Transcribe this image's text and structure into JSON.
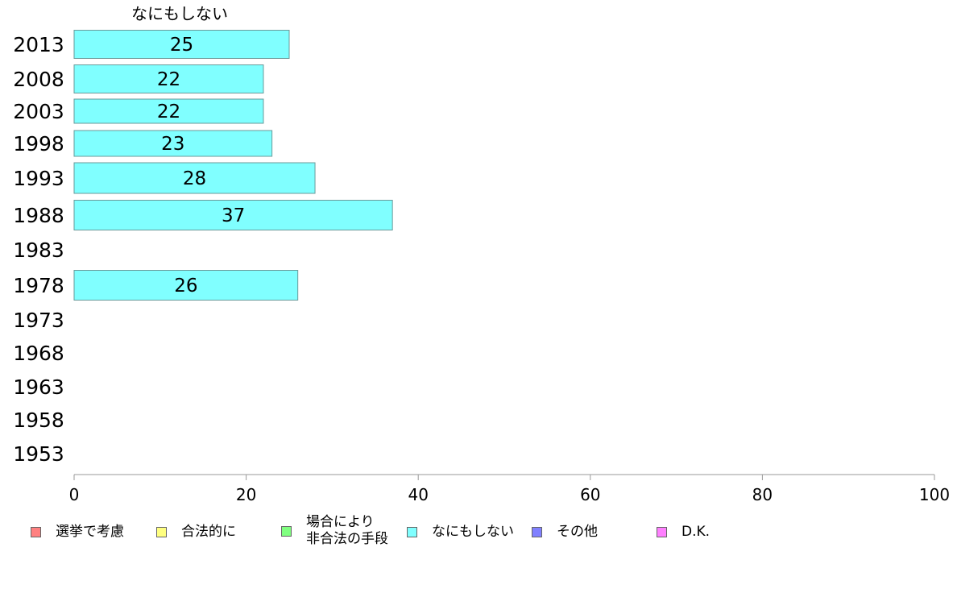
{
  "chart_data": {
    "type": "bar",
    "orientation": "horizontal",
    "series": [
      {
        "name": "なにもしない",
        "color": "#80ffff",
        "values": [
          25,
          22,
          22,
          23,
          28,
          37,
          null,
          26,
          null,
          null,
          null,
          null,
          null
        ]
      }
    ],
    "categories": [
      "2013",
      "2008",
      "2003",
      "1998",
      "1993",
      "1988",
      "1983",
      "1978",
      "1973",
      "1968",
      "1963",
      "1958",
      "1953"
    ],
    "data_labels": [
      "25",
      "22",
      "22",
      "23",
      "28",
      "37",
      "",
      "26",
      "",
      "",
      "",
      "",
      ""
    ],
    "xlim": [
      0,
      100
    ],
    "xticks": [
      "0",
      "20",
      "40",
      "60",
      "80",
      "100"
    ],
    "grid": false,
    "legend_position": "bottom"
  },
  "legend": {
    "items": [
      {
        "label": "選挙で考慮",
        "color": "#ff8080"
      },
      {
        "label": "合法的に",
        "color": "#ffff80"
      },
      {
        "label": "場合により\n非合法の手段",
        "color": "#80ff80"
      },
      {
        "label": "なにもしない",
        "color": "#80ffff"
      },
      {
        "label": "その他",
        "color": "#8080ff"
      },
      {
        "label": "D.K.",
        "color": "#ff80ff"
      }
    ]
  }
}
